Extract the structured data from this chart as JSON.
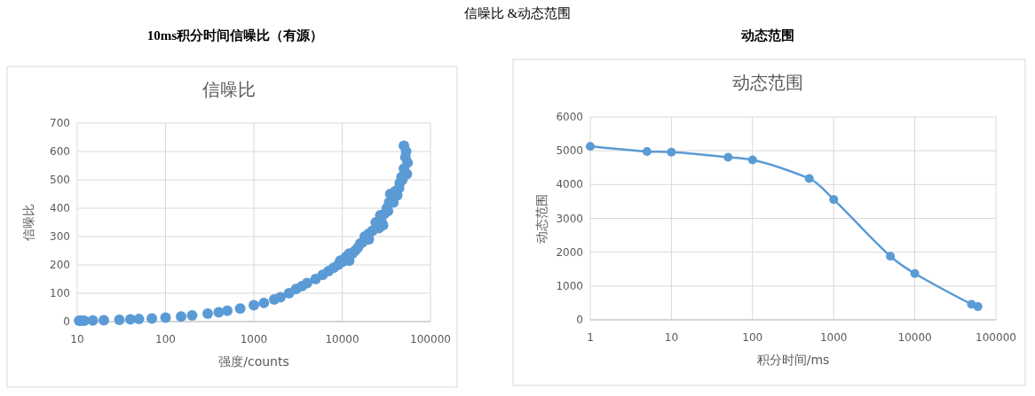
{
  "chart_data": [
    {
      "type": "other",
      "title": "信噪比 &动态范围"
    },
    {
      "type": "scatter",
      "annotations": [
        "10ms积分时间信噪比（有源）"
      ],
      "title": "信噪比",
      "xlabel": "强度/counts",
      "ylabel": "信噪比",
      "log": "x",
      "xlim": [
        10,
        100000
      ],
      "xticks": [
        10,
        100,
        1000,
        10000,
        100000
      ],
      "ylim": [
        0,
        700
      ],
      "yticks": [
        0,
        100,
        200,
        300,
        400,
        500,
        600,
        700
      ],
      "grid": true,
      "marker": "circle",
      "series": [
        {
          "color": "#5b9bd5",
          "x": [
            10.5,
            11,
            12,
            15,
            20,
            30,
            40,
            50,
            70,
            100,
            150,
            200,
            300,
            400,
            500,
            700,
            1000,
            1300,
            1700,
            2000,
            2500,
            3000,
            3500,
            4000,
            5000,
            6000,
            7000,
            8000,
            9000,
            9500,
            10000,
            11000,
            12000,
            12000,
            13000,
            14000,
            15000,
            16000,
            17000,
            18000,
            20000,
            20000,
            22000,
            24000,
            26000,
            27000,
            28000,
            29000,
            30000,
            32000,
            33000,
            34000,
            35000,
            38000,
            40000,
            42000,
            44000,
            45000,
            47000,
            48000,
            50000,
            50000,
            52000,
            53000,
            54000,
            55000
          ],
          "values": [
            3,
            3,
            3,
            4,
            5,
            6,
            8,
            9,
            11,
            14,
            18,
            22,
            28,
            33,
            38,
            46,
            58,
            66,
            78,
            86,
            100,
            115,
            125,
            136,
            150,
            165,
            178,
            190,
            200,
            215,
            210,
            228,
            215,
            240,
            240,
            250,
            260,
            275,
            280,
            300,
            310,
            290,
            320,
            350,
            330,
            375,
            350,
            340,
            380,
            400,
            390,
            420,
            450,
            420,
            460,
            445,
            470,
            490,
            510,
            500,
            540,
            620,
            580,
            600,
            520,
            560
          ]
        }
      ]
    },
    {
      "type": "line",
      "annotations": [
        "动态范围"
      ],
      "title": "动态范围",
      "xlabel": "积分时间/ms",
      "ylabel": "动态范围",
      "log": "x",
      "xlim": [
        1,
        100000
      ],
      "xticks": [
        1,
        10,
        100,
        1000,
        10000,
        100000
      ],
      "ylim": [
        0,
        6000
      ],
      "yticks": [
        0,
        1000,
        2000,
        3000,
        4000,
        5000,
        6000
      ],
      "grid": true,
      "marker": "circle",
      "line_style": "solid",
      "series": [
        {
          "color": "#5b9bd5",
          "x": [
            1,
            5,
            10,
            50,
            100,
            500,
            1000,
            5000,
            10000,
            50000,
            60000
          ],
          "values": [
            5130,
            4980,
            4960,
            4810,
            4730,
            4180,
            3560,
            1880,
            1370,
            460,
            390
          ]
        }
      ]
    }
  ]
}
